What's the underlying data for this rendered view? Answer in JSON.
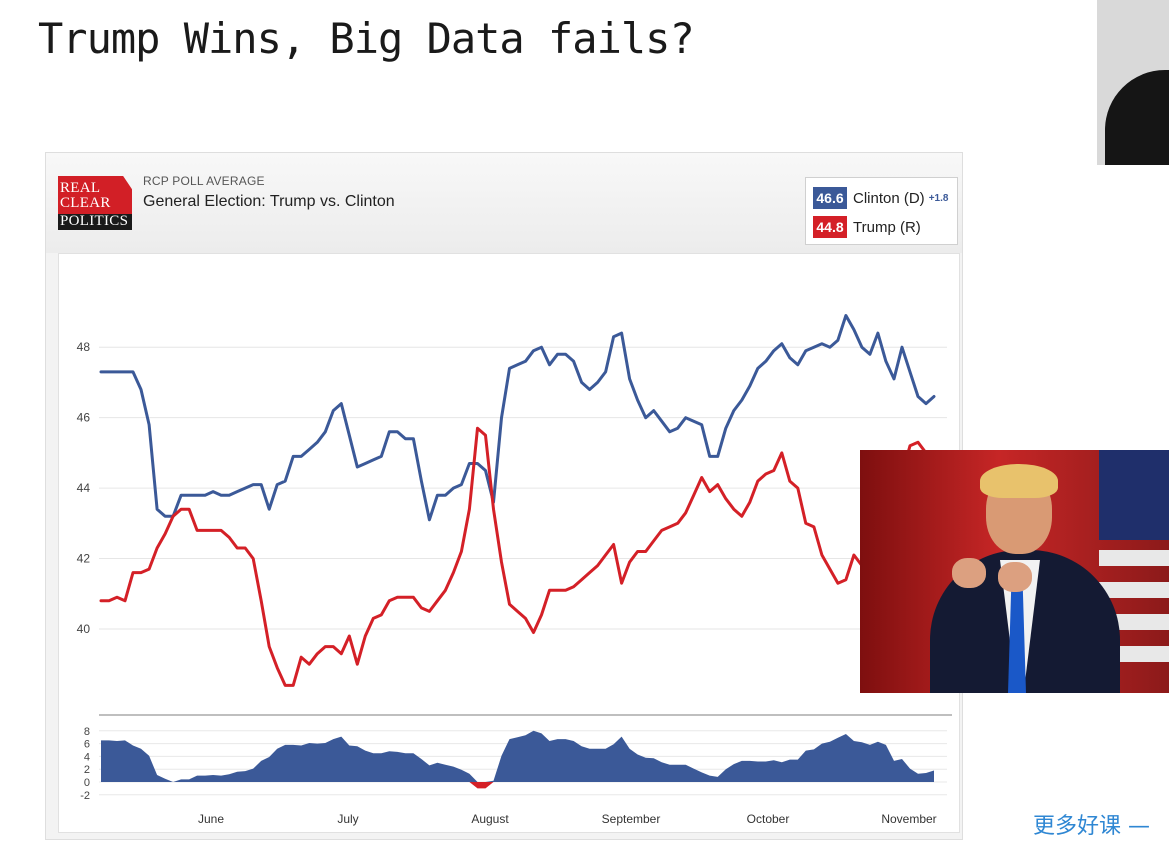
{
  "slide": {
    "title": "Trump Wins, Big Data fails?",
    "footer_link": "更多好课 —"
  },
  "logo_lines": [
    "REAL",
    "CLEAR",
    "POLITICS"
  ],
  "chart_header": {
    "kicker": "RCP POLL AVERAGE",
    "title": "General Election: Trump vs. Clinton"
  },
  "legend": {
    "clinton": {
      "value": "46.6",
      "name": "Clinton (D)",
      "spread": "+1.8",
      "color": "#3b5998"
    },
    "trump": {
      "value": "44.8",
      "name": "Trump (R)",
      "color": "#d42027"
    }
  },
  "chart_data": [
    {
      "type": "line",
      "title": "General Election: Trump vs. Clinton",
      "x_labels": [
        "June",
        "July",
        "August",
        "September",
        "October",
        "November"
      ],
      "ylim": [
        38,
        49.5
      ],
      "y_ticks": [
        40,
        42,
        44,
        46,
        48
      ],
      "grid": true,
      "series": [
        {
          "name": "Clinton (D)",
          "color": "#3b5998",
          "values": [
            47.3,
            47.3,
            47.3,
            47.3,
            47.3,
            46.8,
            45.8,
            43.4,
            43.2,
            43.2,
            43.8,
            43.8,
            43.8,
            43.8,
            43.9,
            43.8,
            43.8,
            43.9,
            44.0,
            44.1,
            44.1,
            43.4,
            44.1,
            44.2,
            44.9,
            44.9,
            45.1,
            45.3,
            45.6,
            46.2,
            46.4,
            45.5,
            44.6,
            44.7,
            44.8,
            44.9,
            45.6,
            45.6,
            45.4,
            45.4,
            44.2,
            43.1,
            43.8,
            43.8,
            44.0,
            44.1,
            44.7,
            44.7,
            44.5,
            43.6,
            46.0,
            47.4,
            47.5,
            47.6,
            47.9,
            48.0,
            47.5,
            47.8,
            47.8,
            47.6,
            47.0,
            46.8,
            47.0,
            47.3,
            48.3,
            48.4,
            47.1,
            46.5,
            46.0,
            46.2,
            45.9,
            45.6,
            45.7,
            46.0,
            45.9,
            45.8,
            44.9,
            44.9,
            45.7,
            46.2,
            46.5,
            46.9,
            47.4,
            47.6,
            47.9,
            48.1,
            47.7,
            47.5,
            47.9,
            48.0,
            48.1,
            48.0,
            48.2,
            48.9,
            48.5,
            48.0,
            47.8,
            48.4,
            47.6,
            47.1,
            48.0,
            47.3,
            46.6,
            46.4,
            46.6
          ]
        },
        {
          "name": "Trump (R)",
          "color": "#d42027",
          "values": [
            40.8,
            40.8,
            40.9,
            40.8,
            41.6,
            41.6,
            41.7,
            42.3,
            42.7,
            43.2,
            43.4,
            43.4,
            42.8,
            42.8,
            42.8,
            42.8,
            42.6,
            42.3,
            42.3,
            42.0,
            40.8,
            39.5,
            38.9,
            38.4,
            38.4,
            39.2,
            39.0,
            39.3,
            39.5,
            39.5,
            39.3,
            39.8,
            39.0,
            39.8,
            40.3,
            40.4,
            40.8,
            40.9,
            40.9,
            40.9,
            40.6,
            40.5,
            40.8,
            41.1,
            41.6,
            42.2,
            43.4,
            45.7,
            45.5,
            43.4,
            41.9,
            40.7,
            40.5,
            40.3,
            39.9,
            40.4,
            41.1,
            41.1,
            41.1,
            41.2,
            41.4,
            41.6,
            41.8,
            42.1,
            42.4,
            41.3,
            41.9,
            42.2,
            42.2,
            42.5,
            42.8,
            42.9,
            43.0,
            43.3,
            43.8,
            44.3,
            43.9,
            44.1,
            43.7,
            43.4,
            43.2,
            43.6,
            44.2,
            44.4,
            44.5,
            45.0,
            44.2,
            44.0,
            43.0,
            42.9,
            42.1,
            41.7,
            41.3,
            41.4,
            42.1,
            41.8,
            42.0,
            42.1,
            41.8,
            43.8,
            44.4,
            45.2,
            45.3,
            45.0,
            44.8
          ]
        }
      ]
    },
    {
      "type": "area",
      "x_labels": [
        "June",
        "July",
        "August",
        "September",
        "October",
        "November"
      ],
      "ylim": [
        -2,
        8
      ],
      "y_ticks": [
        8,
        6,
        4,
        2,
        0,
        -2
      ],
      "grid": true,
      "series": [
        {
          "name": "Clinton (D)",
          "color": "#3b5998",
          "negative_color": "#d42027",
          "values": [
            6.5,
            6.5,
            6.4,
            6.5,
            5.7,
            5.2,
            4.1,
            1.1,
            0.5,
            0.0,
            0.4,
            0.4,
            1.0,
            1.0,
            1.1,
            1.0,
            1.2,
            1.6,
            1.7,
            2.1,
            3.3,
            3.9,
            5.2,
            5.8,
            5.8,
            5.7,
            6.1,
            6.0,
            6.1,
            6.7,
            7.1,
            5.7,
            5.6,
            4.9,
            4.5,
            4.5,
            4.8,
            4.7,
            4.5,
            4.5,
            3.6,
            2.6,
            3.0,
            2.7,
            2.4,
            1.9,
            1.3,
            -1.0,
            -1.0,
            0.2,
            4.1,
            6.7,
            7.0,
            7.3,
            8.0,
            7.6,
            6.4,
            6.7,
            6.7,
            6.4,
            5.6,
            5.2,
            5.2,
            5.2,
            5.9,
            7.1,
            5.2,
            4.3,
            3.8,
            3.7,
            3.1,
            2.7,
            2.7,
            2.7,
            2.1,
            1.5,
            1.0,
            0.8,
            2.0,
            2.8,
            3.3,
            3.3,
            3.2,
            3.2,
            3.4,
            3.1,
            3.5,
            3.5,
            4.9,
            5.1,
            6.0,
            6.3,
            6.9,
            7.5,
            6.4,
            6.2,
            5.8,
            6.3,
            5.8,
            3.3,
            3.6,
            2.1,
            1.3,
            1.4,
            1.8
          ]
        }
      ]
    }
  ]
}
